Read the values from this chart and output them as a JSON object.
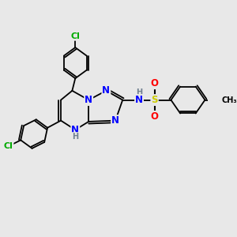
{
  "background_color": "#e8e8e8",
  "bond_color": "#000000",
  "atom_colors": {
    "N": "#0000ff",
    "Cl": "#00aa00",
    "S": "#cccc00",
    "O": "#ff0000",
    "H_label": "#708090",
    "C": "#000000"
  },
  "figsize": [
    3.0,
    3.0
  ],
  "dpi": 100,
  "xlim": [
    0,
    10
  ],
  "ylim": [
    0,
    10
  ]
}
